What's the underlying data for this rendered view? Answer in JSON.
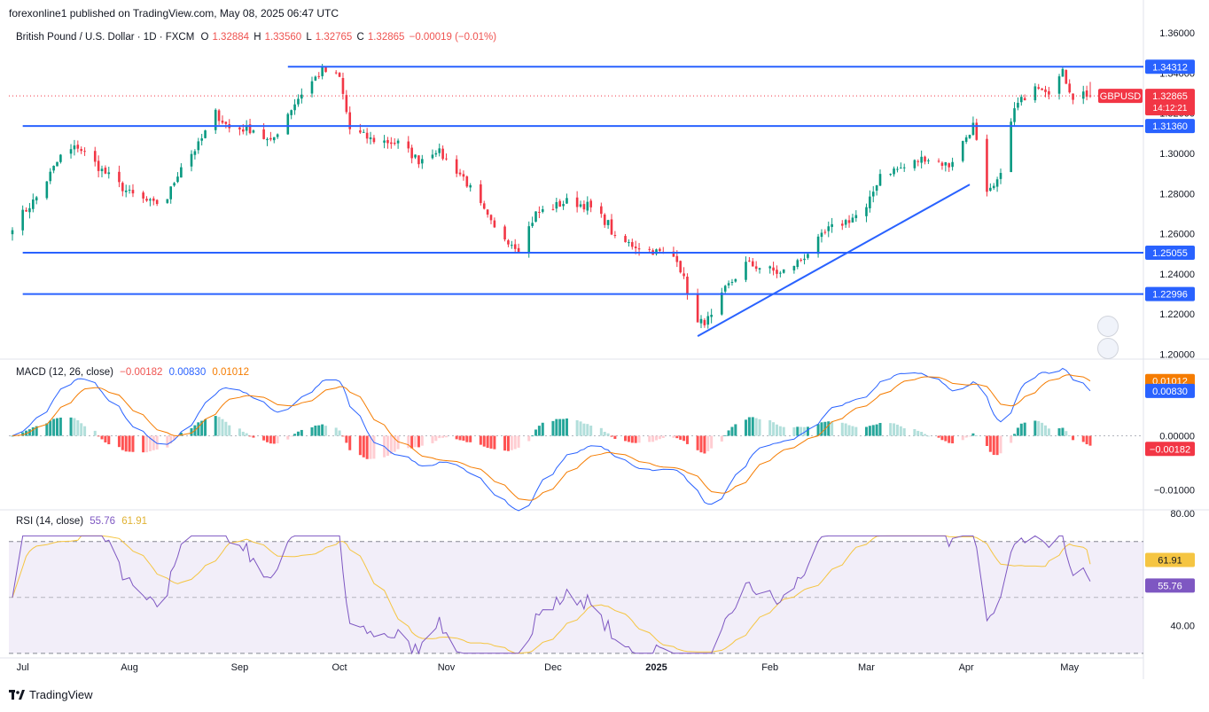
{
  "publisher": "forexonline1 published on TradingView.com, May 08, 2025 06:47 UTC",
  "brand": "TradingView",
  "header": {
    "symbol": "British Pound / U.S. Dollar · 1D · FXCM",
    "o_label": "O",
    "o_value": "1.32884",
    "h_label": "H",
    "h_value": "1.33560",
    "l_label": "L",
    "l_value": "1.32765",
    "c_label": "C",
    "c_value": "1.32865",
    "change": "−0.00019 (−0.01%)"
  },
  "macd_legend": {
    "title": "MACD (12, 26, close)",
    "hist": "−0.00182",
    "macd": "0.00830",
    "signal": "0.01012"
  },
  "rsi_legend": {
    "title": "RSI (14, close)",
    "rsi": "55.76",
    "ma": "61.91"
  },
  "colors": {
    "up": "#089981",
    "down": "#f23645",
    "level": "#2962ff",
    "macd": "#2962ff",
    "signal": "#f57c00",
    "rsi": "#7e57c2",
    "rsi_ma": "#f5c542"
  },
  "icons": [
    "flash-gbp-flag-icon",
    "gbp-usd-flags-icon",
    "tradingview-logo-icon"
  ],
  "chart_data": [
    {
      "type": "candlestick",
      "symbol_badge": "GBPUSD",
      "last_price": 1.32865,
      "last_price_label": "1.32865",
      "countdown": "14:12:21",
      "y_ticks": [
        1.2,
        1.22,
        1.24,
        1.26,
        1.28,
        1.3,
        1.32,
        1.34,
        1.36
      ],
      "y_tick_labels": [
        "1.20000",
        "1.22000",
        "1.24000",
        "1.26000",
        "1.28000",
        "1.30000",
        "1.32000",
        "1.34000",
        "1.36000"
      ],
      "ylim": [
        1.198,
        1.364
      ],
      "x_ticks": [
        "Jul",
        "Aug",
        "Sep",
        "Oct",
        "Nov",
        "Dec",
        "2025",
        "Feb",
        "Mar",
        "Apr",
        "May"
      ],
      "x_tick_dates": [
        "2024-07-01",
        "2024-08-01",
        "2024-09-02",
        "2024-10-01",
        "2024-11-01",
        "2024-12-02",
        "2025-01-01",
        "2025-02-03",
        "2025-03-03",
        "2025-04-01",
        "2025-05-01"
      ],
      "horizontal_levels": [
        {
          "value": 1.34312,
          "label": "1.34312",
          "from": "2024-09-16"
        },
        {
          "value": 1.3136,
          "label": "1.31360",
          "from": "2024-07-01"
        },
        {
          "value": 1.25055,
          "label": "1.25055",
          "from": "2024-07-01"
        },
        {
          "value": 1.22996,
          "label": "1.22996",
          "from": "2024-07-01"
        }
      ],
      "trendline": {
        "from": [
          "2025-01-13",
          1.209
        ],
        "to": [
          "2025-04-02",
          1.2845
        ]
      },
      "anchors": [
        [
          "2024-06-28",
          1.264
        ],
        [
          "2024-07-05",
          1.278
        ],
        [
          "2024-07-12",
          1.2985
        ],
        [
          "2024-07-17",
          1.3035
        ],
        [
          "2024-07-24",
          1.2915
        ],
        [
          "2024-08-01",
          1.28
        ],
        [
          "2024-08-08",
          1.2745
        ],
        [
          "2024-08-12",
          1.278
        ],
        [
          "2024-08-16",
          1.294
        ],
        [
          "2024-08-21",
          1.304
        ],
        [
          "2024-08-26",
          1.32
        ],
        [
          "2024-08-30",
          1.3125
        ],
        [
          "2024-09-06",
          1.312
        ],
        [
          "2024-09-11",
          1.305
        ],
        [
          "2024-09-16",
          1.32
        ],
        [
          "2024-09-20",
          1.33
        ],
        [
          "2024-09-26",
          1.3415
        ],
        [
          "2024-10-01",
          1.3375
        ],
        [
          "2024-10-04",
          1.312
        ],
        [
          "2024-10-10",
          1.307
        ],
        [
          "2024-10-18",
          1.305
        ],
        [
          "2024-10-24",
          1.2965
        ],
        [
          "2024-10-29",
          1.302
        ],
        [
          "2024-11-06",
          1.288
        ],
        [
          "2024-11-15",
          1.262
        ],
        [
          "2024-11-22",
          1.253
        ],
        [
          "2024-11-27",
          1.27
        ],
        [
          "2024-12-06",
          1.276
        ],
        [
          "2024-12-12",
          1.274
        ],
        [
          "2024-12-18",
          1.265
        ],
        [
          "2024-12-20",
          1.257
        ],
        [
          "2024-12-31",
          1.2515
        ],
        [
          "2025-01-07",
          1.248
        ],
        [
          "2025-01-13",
          1.215
        ],
        [
          "2025-01-17",
          1.218
        ],
        [
          "2025-01-21",
          1.232
        ],
        [
          "2025-01-27",
          1.245
        ],
        [
          "2025-02-03",
          1.242
        ],
        [
          "2025-02-06",
          1.24
        ],
        [
          "2025-02-12",
          1.247
        ],
        [
          "2025-02-20",
          1.262
        ],
        [
          "2025-02-26",
          1.267
        ],
        [
          "2025-03-03",
          1.272
        ],
        [
          "2025-03-07",
          1.29
        ],
        [
          "2025-03-14",
          1.293
        ],
        [
          "2025-03-20",
          1.298
        ],
        [
          "2025-03-27",
          1.294
        ],
        [
          "2025-04-03",
          1.314
        ],
        [
          "2025-04-07",
          1.279
        ],
        [
          "2025-04-10",
          1.285
        ],
        [
          "2025-04-15",
          1.322
        ],
        [
          "2025-04-21",
          1.335
        ],
        [
          "2025-04-25",
          1.3315
        ],
        [
          "2025-04-29",
          1.34
        ],
        [
          "2025-05-02",
          1.328
        ],
        [
          "2025-05-05",
          1.33
        ],
        [
          "2025-05-07",
          1.3287
        ]
      ]
    },
    {
      "type": "macd",
      "params": "12, 26, close",
      "y_ticks": [
        -0.01,
        0.0
      ],
      "y_tick_labels": [
        "−0.01000",
        "0.00000"
      ],
      "ylim": [
        -0.0135,
        0.014
      ],
      "last": {
        "macd": 0.0083,
        "signal": 0.01012,
        "histogram": -0.00182
      },
      "last_labels": {
        "macd": "0.00830",
        "signal": "0.01012",
        "histogram": "−0.00182"
      }
    },
    {
      "type": "rsi",
      "params": "14, close",
      "y_ticks": [
        40,
        80
      ],
      "y_tick_labels": [
        "40.00",
        "80.00"
      ],
      "ylim": [
        29,
        81
      ],
      "band": [
        30,
        70
      ],
      "midline": 50,
      "last": {
        "rsi": 55.76,
        "ma": 61.91
      },
      "last_labels": {
        "rsi": "55.76",
        "ma": "61.91"
      }
    }
  ]
}
